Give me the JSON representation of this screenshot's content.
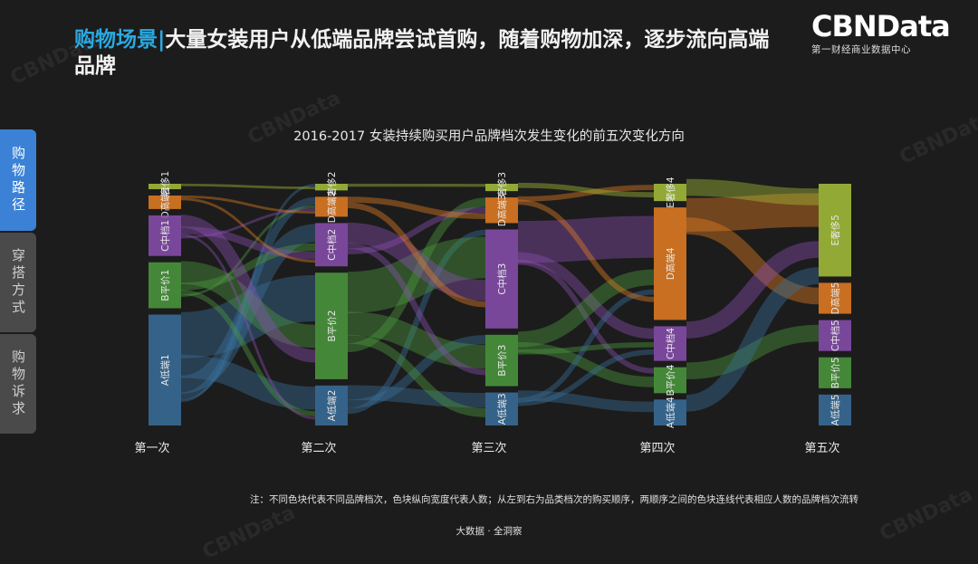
{
  "header": {
    "title_accent": "购物场景|",
    "title_rest": "大量女装用户从低端品牌尝试首购，随着购物加深，逐步流向高端品牌"
  },
  "logo": {
    "brand": "CBNData",
    "subtitle": "第一财经商业数据中心",
    "watermark": "CBNData"
  },
  "sidebar": {
    "items": [
      {
        "label": "购物路径",
        "active": true
      },
      {
        "label": "穿搭方式",
        "active": false
      },
      {
        "label": "购物诉求",
        "active": false
      }
    ]
  },
  "note": "注：不同色块代表不同品牌档次，色块纵向宽度代表人数；从左到右为品类档次的购买顺序，两顺序之间的色块连线代表相应人数的品牌档次流转",
  "footer": "大数据 · 全洞察",
  "chart_data": {
    "type": "sankey",
    "title": "2016-2017 女装持续购买用户品牌档次发生变化的前五次变化方向",
    "stages": [
      "第一次",
      "第二次",
      "第三次",
      "第四次",
      "第五次"
    ],
    "colors": {
      "A": "#3a6f9c",
      "B": "#4c9a3e",
      "C": "#8a4fb0",
      "D": "#e67e22",
      "E": "#a8c23a"
    },
    "nodes": [
      [
        {
          "id": "E",
          "label": "E奢侈1",
          "value": 2
        },
        {
          "id": "D",
          "label": "D高端1",
          "value": 5
        },
        {
          "id": "C",
          "label": "C中档1",
          "value": 15
        },
        {
          "id": "B",
          "label": "B平价1",
          "value": 17
        },
        {
          "id": "A",
          "label": "A低端1",
          "value": 41
        }
      ],
      [
        {
          "id": "E",
          "label": "E奢侈2",
          "value": 2
        },
        {
          "id": "D",
          "label": "D高端2",
          "value": 6
        },
        {
          "id": "C",
          "label": "C中档2",
          "value": 13
        },
        {
          "id": "B",
          "label": "B平价2",
          "value": 32
        },
        {
          "id": "A",
          "label": "A低端2",
          "value": 12
        }
      ],
      [
        {
          "id": "E",
          "label": "E奢侈3",
          "value": 2
        },
        {
          "id": "D",
          "label": "D高端3",
          "value": 7
        },
        {
          "id": "C",
          "label": "C中档3",
          "value": 27
        },
        {
          "id": "B",
          "label": "B平价3",
          "value": 14
        },
        {
          "id": "A",
          "label": "A低端3",
          "value": 9
        }
      ],
      [
        {
          "id": "E",
          "label": "E奢侈4",
          "value": 2
        },
        {
          "id": "D",
          "label": "D高端4",
          "value": 13
        },
        {
          "id": "C",
          "label": "C中档4",
          "value": 4
        },
        {
          "id": "B",
          "label": "B平价4",
          "value": 3
        },
        {
          "id": "A",
          "label": "A低端4",
          "value": 3
        }
      ],
      [
        {
          "id": "E",
          "label": "E奢侈5",
          "value": 3
        },
        {
          "id": "D",
          "label": "D高端5",
          "value": 1
        },
        {
          "id": "C",
          "label": "C中档5",
          "value": 1
        },
        {
          "id": "B",
          "label": "B平价5",
          "value": 1
        },
        {
          "id": "A",
          "label": "A低端5",
          "value": 1
        }
      ]
    ],
    "links": [
      [
        {
          "from": "A",
          "to": "B",
          "value": 18
        },
        {
          "from": "A",
          "to": "A",
          "value": 9
        },
        {
          "from": "A",
          "to": "C",
          "value": 7
        },
        {
          "from": "A",
          "to": "D",
          "value": 3
        },
        {
          "from": "A",
          "to": "E",
          "value": 1
        },
        {
          "from": "B",
          "to": "B",
          "value": 9
        },
        {
          "from": "B",
          "to": "C",
          "value": 3
        },
        {
          "from": "B",
          "to": "A",
          "value": 2
        },
        {
          "from": "B",
          "to": "D",
          "value": 1
        },
        {
          "from": "C",
          "to": "B",
          "value": 5
        },
        {
          "from": "C",
          "to": "C",
          "value": 3
        },
        {
          "from": "C",
          "to": "A",
          "value": 1
        },
        {
          "from": "C",
          "to": "D",
          "value": 1
        },
        {
          "from": "D",
          "to": "D",
          "value": 1
        },
        {
          "from": "D",
          "to": "C",
          "value": 1
        },
        {
          "from": "E",
          "to": "E",
          "value": 1
        }
      ],
      [
        {
          "from": "A",
          "to": "A",
          "value": 5
        },
        {
          "from": "A",
          "to": "B",
          "value": 3
        },
        {
          "from": "A",
          "to": "C",
          "value": 2
        },
        {
          "from": "B",
          "to": "C",
          "value": 14
        },
        {
          "from": "B",
          "to": "B",
          "value": 8
        },
        {
          "from": "B",
          "to": "A",
          "value": 3
        },
        {
          "from": "B",
          "to": "D",
          "value": 3
        },
        {
          "from": "C",
          "to": "C",
          "value": 7
        },
        {
          "from": "C",
          "to": "B",
          "value": 2
        },
        {
          "from": "C",
          "to": "D",
          "value": 2
        },
        {
          "from": "D",
          "to": "D",
          "value": 2
        },
        {
          "from": "D",
          "to": "C",
          "value": 2
        },
        {
          "from": "E",
          "to": "E",
          "value": 1
        }
      ],
      [
        {
          "from": "C",
          "to": "D",
          "value": 8
        },
        {
          "from": "C",
          "to": "C",
          "value": 2
        },
        {
          "from": "C",
          "to": "B",
          "value": 1
        },
        {
          "from": "B",
          "to": "D",
          "value": 3
        },
        {
          "from": "B",
          "to": "B",
          "value": 2
        },
        {
          "from": "B",
          "to": "C",
          "value": 1
        },
        {
          "from": "A",
          "to": "A",
          "value": 2
        },
        {
          "from": "A",
          "to": "D",
          "value": 1
        },
        {
          "from": "A",
          "to": "C",
          "value": 1
        },
        {
          "from": "D",
          "to": "E",
          "value": 1
        },
        {
          "from": "D",
          "to": "D",
          "value": 1
        },
        {
          "from": "E",
          "to": "E",
          "value": 1
        }
      ],
      [
        {
          "from": "D",
          "to": "E",
          "value": 2
        },
        {
          "from": "D",
          "to": "D",
          "value": 1
        },
        {
          "from": "C",
          "to": "E",
          "value": 1
        },
        {
          "from": "B",
          "to": "C",
          "value": 1
        },
        {
          "from": "A",
          "to": "E",
          "value": 1
        },
        {
          "from": "E",
          "to": "E",
          "value": 1
        }
      ]
    ]
  }
}
